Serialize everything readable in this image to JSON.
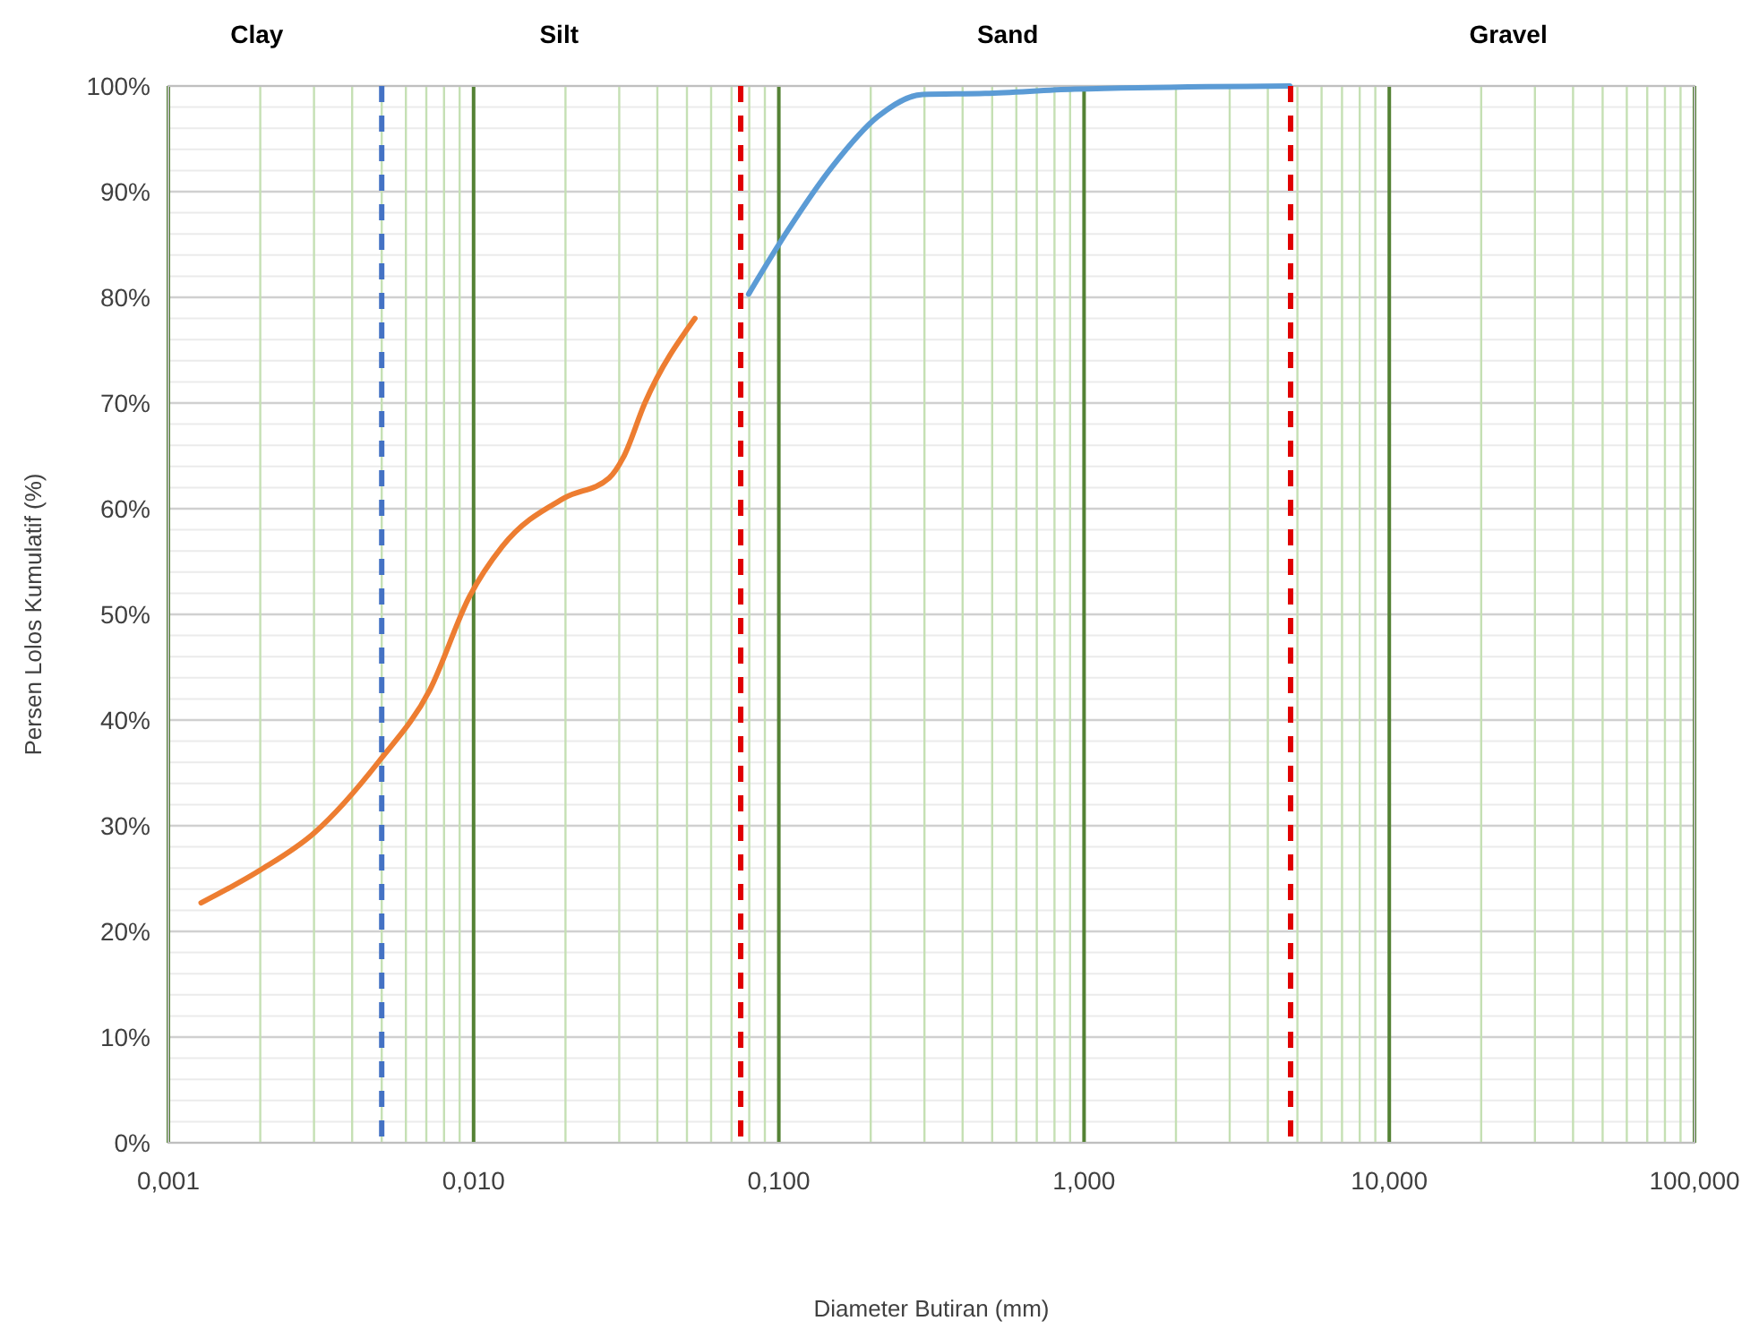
{
  "chart_data": {
    "type": "line",
    "xlabel": "Diameter Butiran (mm)",
    "ylabel": "Persen Lolos Kumulatif (%)",
    "log": "x",
    "grid": true,
    "marker": "none",
    "line_style": "solid",
    "xlim": [
      0.001,
      100
    ],
    "xticks": [
      {
        "value": 0.001,
        "label": "0,001"
      },
      {
        "value": 0.002,
        "label": null
      },
      {
        "value": 0.003,
        "label": null
      },
      {
        "value": 0.004,
        "label": null
      },
      {
        "value": 0.005,
        "label": null
      },
      {
        "value": 0.006,
        "label": null
      },
      {
        "value": 0.007,
        "label": null
      },
      {
        "value": 0.008,
        "label": null
      },
      {
        "value": 0.009,
        "label": null
      },
      {
        "value": 0.01,
        "label": "0,010"
      },
      {
        "value": 0.02,
        "label": null
      },
      {
        "value": 0.03,
        "label": null
      },
      {
        "value": 0.04,
        "label": null
      },
      {
        "value": 0.05,
        "label": null
      },
      {
        "value": 0.06,
        "label": null
      },
      {
        "value": 0.07,
        "label": null
      },
      {
        "value": 0.08,
        "label": null
      },
      {
        "value": 0.09,
        "label": null
      },
      {
        "value": 0.1,
        "label": "0,100"
      },
      {
        "value": 0.2,
        "label": null
      },
      {
        "value": 0.3,
        "label": null
      },
      {
        "value": 0.4,
        "label": null
      },
      {
        "value": 0.5,
        "label": null
      },
      {
        "value": 0.6,
        "label": null
      },
      {
        "value": 0.7,
        "label": null
      },
      {
        "value": 0.8,
        "label": null
      },
      {
        "value": 0.9,
        "label": null
      },
      {
        "value": 1,
        "label": "1,000"
      },
      {
        "value": 2,
        "label": null
      },
      {
        "value": 3,
        "label": null
      },
      {
        "value": 4,
        "label": null
      },
      {
        "value": 5,
        "label": null
      },
      {
        "value": 6,
        "label": null
      },
      {
        "value": 7,
        "label": null
      },
      {
        "value": 8,
        "label": null
      },
      {
        "value": 9,
        "label": null
      },
      {
        "value": 10,
        "label": "10,000"
      },
      {
        "value": 20,
        "label": null
      },
      {
        "value": 30,
        "label": null
      },
      {
        "value": 40,
        "label": null
      },
      {
        "value": 50,
        "label": null
      },
      {
        "value": 60,
        "label": null
      },
      {
        "value": 70,
        "label": null
      },
      {
        "value": 80,
        "label": null
      },
      {
        "value": 90,
        "label": null
      },
      {
        "value": 100,
        "label": "100,000"
      }
    ],
    "ylim": [
      0,
      100
    ],
    "yticks": [
      {
        "value": 0,
        "label": "0%"
      },
      {
        "value": 10,
        "label": "10%"
      },
      {
        "value": 20,
        "label": "20%"
      },
      {
        "value": 30,
        "label": "30%"
      },
      {
        "value": 40,
        "label": "40%"
      },
      {
        "value": 50,
        "label": "50%"
      },
      {
        "value": 60,
        "label": "60%"
      },
      {
        "value": 70,
        "label": "70%"
      },
      {
        "value": 80,
        "label": "80%"
      },
      {
        "value": 90,
        "label": "90%"
      },
      {
        "value": 100,
        "label": "100%"
      }
    ],
    "series": [
      {
        "color": "#ed7d31",
        "x": [
          0.00128,
          0.002,
          0.003,
          0.0049,
          0.0072,
          0.0097,
          0.0124,
          0.0198,
          0.0278,
          0.031,
          0.0364,
          0.0531
        ],
        "values": [
          22.7,
          25.8,
          29.3,
          36.1,
          42.9,
          51.7,
          56.4,
          61.0,
          62.9,
          64.9,
          70.0,
          78.0
        ]
      },
      {
        "color": "#5b9bd5",
        "x": [
          0.0796,
          0.1074,
          0.15,
          0.211,
          0.296,
          0.474,
          0.93,
          4.72
        ],
        "values": [
          80.3,
          86.4,
          92.4,
          97.1,
          99.2,
          99.3,
          99.7,
          100
        ]
      }
    ],
    "ref_lines": [
      {
        "axis": "x",
        "value": 0.005,
        "color": "#4472c4",
        "line_style": "dashed"
      },
      {
        "axis": "x",
        "value": 0.075,
        "color": "#e00000",
        "line_style": "dashed"
      },
      {
        "axis": "x",
        "value": 4.75,
        "color": "#e00000",
        "line_style": "dashed"
      }
    ],
    "annotations": [
      "Clay",
      "Silt",
      "Sand",
      "Gravel"
    ]
  }
}
